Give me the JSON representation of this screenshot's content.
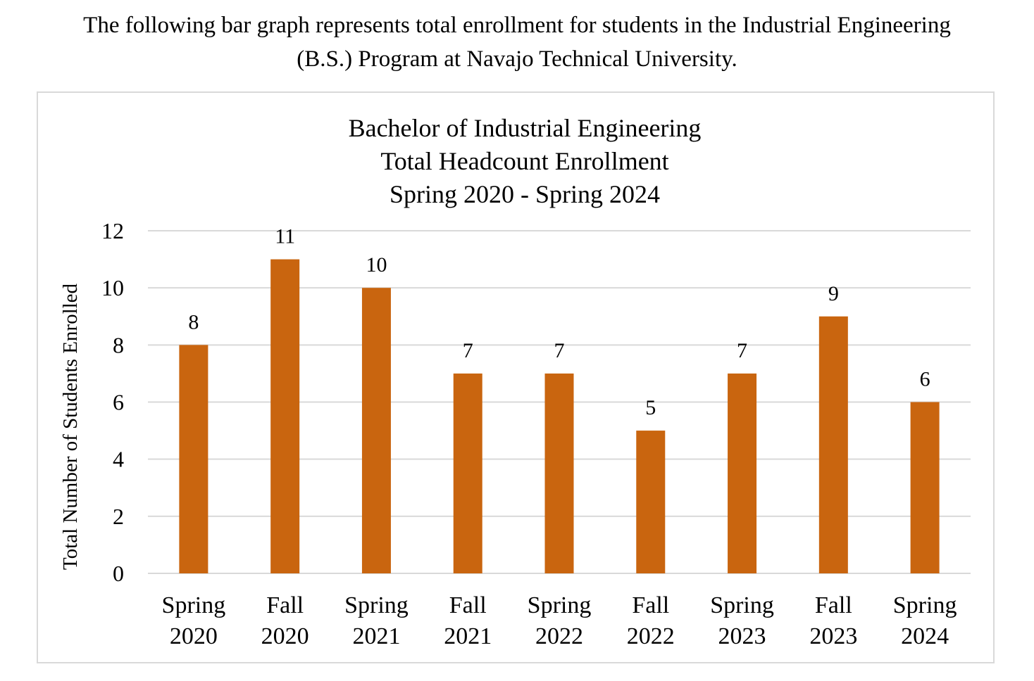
{
  "intro": {
    "line1": "The following bar graph represents total enrollment for students in the Industrial Engineering",
    "line2": "(B.S.) Program at Navajo Technical University."
  },
  "chart_data": {
    "type": "bar",
    "title_lines": [
      "Bachelor of Industrial Engineering",
      "Total Headcount Enrollment",
      "Spring 2020 - Spring 2024"
    ],
    "xlabel": "",
    "ylabel": "Total Number of Students Enrolled",
    "categories": [
      [
        "Spring",
        "2020"
      ],
      [
        "Fall",
        "2020"
      ],
      [
        "Spring",
        "2021"
      ],
      [
        "Fall",
        "2021"
      ],
      [
        "Spring",
        "2022"
      ],
      [
        "Fall",
        "2022"
      ],
      [
        "Spring",
        "2023"
      ],
      [
        "Fall",
        "2023"
      ],
      [
        "Spring",
        "2024"
      ]
    ],
    "values": [
      8,
      11,
      10,
      7,
      7,
      5,
      7,
      9,
      6
    ],
    "data_labels": true,
    "ylim": [
      0,
      12
    ],
    "yticks": [
      0,
      2,
      4,
      6,
      8,
      10,
      12
    ],
    "grid": true,
    "legend": "none",
    "colors": {
      "bar": "#c9650f",
      "grid": "#d9d9d9",
      "frame": "#d9d9d9"
    }
  }
}
